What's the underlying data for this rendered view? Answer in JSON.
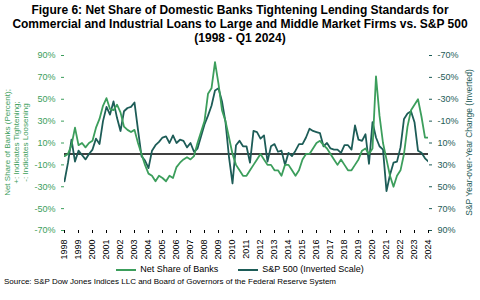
{
  "chart_data": {
    "type": "line",
    "title": "Figure 6: Net Share of Domestic Banks Tightening Lending Standards for Commercial and Industrial Loans to Large and Middle Market Firms vs. S&P 500 (1998 - Q1 2024)",
    "y_label": [
      "Net Share of Banks (Percent);",
      "+: Indicates Tightening;",
      "-: Indicates Loosening"
    ],
    "y2_label": "S&P Year-over-Year Change (Inverted)",
    "source": "Source: S&P Dow Jones Indices LLC and Board of Governors of the Federal Reserve System",
    "legend": "bottom",
    "grid": false,
    "baseline": 0,
    "x": [
      1998,
      1998.25,
      1998.5,
      1998.75,
      1999,
      1999.25,
      1999.5,
      1999.75,
      2000,
      2000.25,
      2000.5,
      2000.75,
      2001,
      2001.25,
      2001.5,
      2001.75,
      2002,
      2002.25,
      2002.5,
      2002.75,
      2003,
      2003.25,
      2003.5,
      2003.75,
      2004,
      2004.25,
      2004.5,
      2004.75,
      2005,
      2005.25,
      2005.5,
      2005.75,
      2006,
      2006.25,
      2006.5,
      2006.75,
      2007,
      2007.25,
      2007.5,
      2007.75,
      2008,
      2008.25,
      2008.5,
      2008.75,
      2009,
      2009.25,
      2009.5,
      2009.75,
      2010,
      2010.25,
      2010.5,
      2010.75,
      2011,
      2011.25,
      2011.5,
      2011.75,
      2012,
      2012.25,
      2012.5,
      2012.75,
      2013,
      2013.25,
      2013.5,
      2013.75,
      2014,
      2014.25,
      2014.5,
      2014.75,
      2015,
      2015.25,
      2015.5,
      2015.75,
      2016,
      2016.25,
      2016.5,
      2016.75,
      2017,
      2017.25,
      2017.5,
      2017.75,
      2018,
      2018.25,
      2018.5,
      2018.75,
      2019,
      2019.25,
      2019.5,
      2019.75,
      2020,
      2020.25,
      2020.5,
      2020.75,
      2021,
      2021.25,
      2021.5,
      2021.75,
      2022,
      2022.25,
      2022.5,
      2022.75,
      2023,
      2023.25,
      2023.5,
      2023.75,
      2024
    ],
    "xlim": [
      1998,
      2024
    ],
    "xticks": [
      1998,
      1999,
      2000,
      2001,
      2002,
      2003,
      2004,
      2005,
      2006,
      2007,
      2008,
      2009,
      2010,
      2011,
      2012,
      2013,
      2014,
      2015,
      2016,
      2017,
      2018,
      2019,
      2020,
      2021,
      2022,
      2023,
      2024
    ],
    "ylim": [
      -70,
      90
    ],
    "yticks": [
      {
        "value": -70,
        "label": "-70%"
      },
      {
        "value": -50,
        "label": "-50%"
      },
      {
        "value": -30,
        "label": "-30%"
      },
      {
        "value": -10,
        "label": "-10%"
      },
      {
        "value": 10,
        "label": "10%"
      },
      {
        "value": 30,
        "label": "30%"
      },
      {
        "value": 50,
        "label": "50%"
      },
      {
        "value": 70,
        "label": "70%"
      },
      {
        "value": 90,
        "label": "90%"
      }
    ],
    "y2lim": [
      90,
      -70
    ],
    "y2ticks": [
      {
        "value": 90,
        "label": "90%"
      },
      {
        "value": 70,
        "label": "70%"
      },
      {
        "value": 50,
        "label": "50%"
      },
      {
        "value": 30,
        "label": "30%"
      },
      {
        "value": 10,
        "label": "10%"
      },
      {
        "value": -10,
        "label": "-10%"
      },
      {
        "value": -30,
        "label": "-30%"
      },
      {
        "value": -50,
        "label": "-50%"
      },
      {
        "value": -70,
        "label": "-70%"
      }
    ],
    "series": [
      {
        "name": "Net Share of Banks",
        "color": "#3c9e5c",
        "values": [
          -2,
          0,
          8,
          24,
          8,
          10,
          6,
          10,
          12,
          24,
          32,
          44,
          51,
          41,
          40,
          45,
          38,
          25,
          22,
          20,
          22,
          10,
          0,
          -10,
          -18,
          -20,
          -25,
          -20,
          -22,
          -25,
          -20,
          -22,
          -12,
          -8,
          -5,
          -3,
          -5,
          -2,
          10,
          20,
          30,
          55,
          60,
          84,
          64,
          40,
          30,
          15,
          0,
          -10,
          -15,
          -20,
          -20,
          -15,
          -10,
          -5,
          0,
          -5,
          -10,
          -10,
          -15,
          -15,
          -20,
          -10,
          -10,
          -15,
          -20,
          -15,
          -5,
          0,
          0,
          5,
          10,
          12,
          8,
          5,
          0,
          -5,
          -10,
          -5,
          -10,
          -15,
          -15,
          -10,
          -5,
          3,
          5,
          0,
          5,
          71,
          35,
          10,
          -5,
          -20,
          -30,
          -20,
          -15,
          0,
          25,
          40,
          45,
          50,
          34,
          15,
          15
        ]
      },
      {
        "name": "S&P 500 (Inverted Scale)",
        "color": "#1d5c57",
        "axis": "y2",
        "values": [
          45,
          28,
          7,
          27,
          17,
          21,
          25,
          20,
          16,
          6,
          11,
          -10,
          -23,
          -16,
          -28,
          -13,
          -1,
          -19,
          -22,
          -23,
          -27,
          -2,
          22,
          26,
          33,
          17,
          12,
          9,
          5,
          4,
          10,
          3,
          10,
          7,
          8,
          14,
          10,
          18,
          15,
          4,
          -7,
          -15,
          -24,
          -38,
          -40,
          -28,
          -9,
          23,
          47,
          12,
          8,
          13,
          13,
          28,
          -1,
          0,
          6,
          3,
          27,
          13,
          11,
          18,
          17,
          30,
          19,
          22,
          17,
          11,
          11,
          5,
          -3,
          -1,
          0,
          1,
          13,
          10,
          15,
          16,
          16,
          19,
          12,
          12,
          16,
          -6,
          7,
          8,
          2,
          29,
          -9,
          5,
          13,
          16,
          54,
          39,
          28,
          27,
          14,
          -12,
          -17,
          -19,
          -9,
          17,
          19,
          24,
          27
        ]
      }
    ]
  }
}
